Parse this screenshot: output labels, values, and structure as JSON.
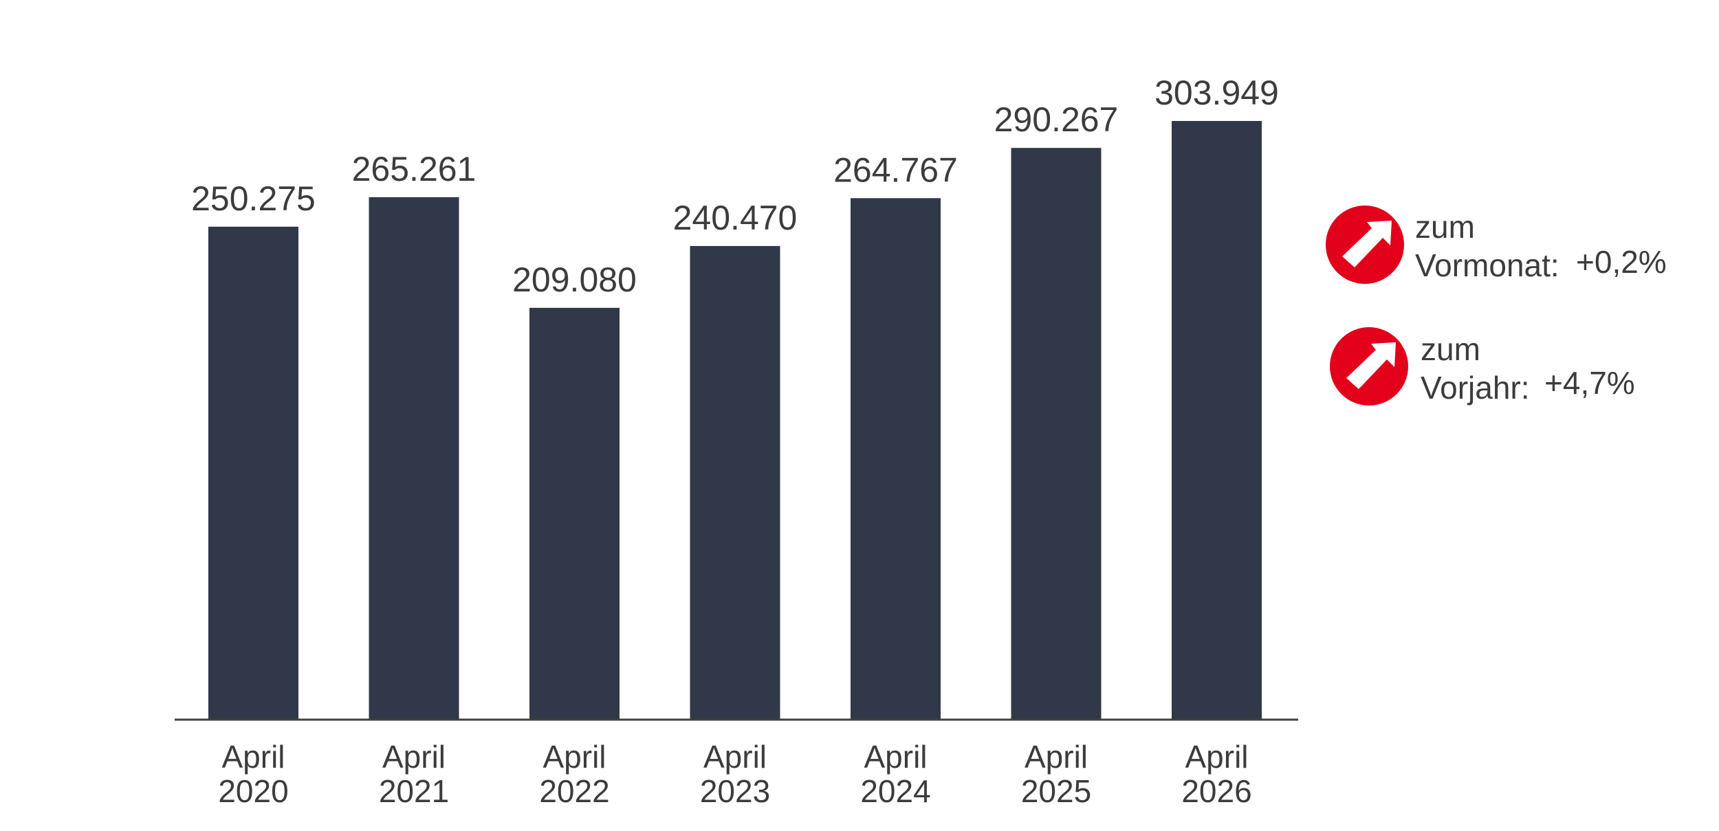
{
  "chart_data": {
    "type": "bar",
    "categories": [
      [
        "April",
        "2020"
      ],
      [
        "April",
        "2021"
      ],
      [
        "April",
        "2022"
      ],
      [
        "April",
        "2023"
      ],
      [
        "April",
        "2024"
      ],
      [
        "April",
        "2025"
      ],
      [
        "April",
        "2026"
      ]
    ],
    "values": [
      250275,
      265261,
      209080,
      240470,
      264767,
      290267,
      303949
    ],
    "value_labels": [
      "250.275",
      "265.261",
      "209.080",
      "240.470",
      "264.767",
      "290.267",
      "303.949"
    ],
    "ylim": [
      0,
      303949
    ],
    "grid": false,
    "bar_color": "#303849",
    "axis_color": "#404040"
  },
  "indicators": [
    {
      "line1": "zum",
      "line2": "Vormonat:",
      "value": "+0,2%",
      "icon": "arrow-up-right-icon",
      "color": "#e2001a"
    },
    {
      "line1": "zum",
      "line2": "Vorjahr:",
      "value": "+4,7%",
      "icon": "arrow-up-right-icon",
      "color": "#e2001a"
    }
  ]
}
